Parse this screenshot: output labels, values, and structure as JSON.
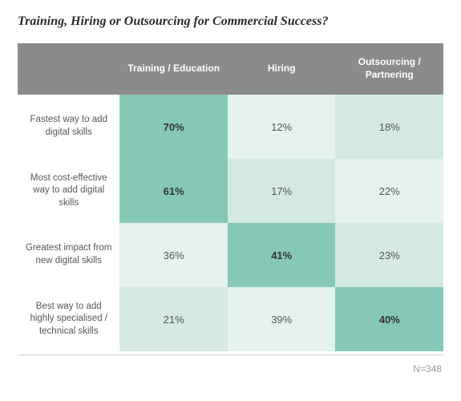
{
  "title": "Training, Hiring or Outsourcing for Commercial Success?",
  "type": "table-heatmap",
  "colors": {
    "header_bg": "#8a8c8b",
    "header_fg": "#ffffff",
    "highlight_bg": "#86c8b6",
    "plain_bg_a": "#e5f2ee",
    "plain_bg_b": "#d3e9e2",
    "background": "#ffffff",
    "text": "#555657",
    "text_strong": "#333333",
    "footnote": "#9a9b9c",
    "rule": "#cfcfcf"
  },
  "typography": {
    "title_font": "Georgia serif italic bold",
    "title_size_pt": 16,
    "header_size_pt": 12,
    "rowlabel_size_pt": 11.5,
    "cell_size_pt": 13,
    "footnote_size_pt": 12
  },
  "columns": [
    "Training / Education",
    "Hiring",
    "Outsourcing / Partnering"
  ],
  "rows": [
    {
      "label": "Fastest way to add digital skills",
      "cells": [
        {
          "value": "70%",
          "bg": "#86c8b6",
          "highlight": true
        },
        {
          "value": "12%",
          "bg": "#e5f2ee",
          "highlight": false
        },
        {
          "value": "18%",
          "bg": "#d3e9e2",
          "highlight": false
        }
      ]
    },
    {
      "label": "Most cost-effective way to add digital skills",
      "cells": [
        {
          "value": "61%",
          "bg": "#86c8b6",
          "highlight": true
        },
        {
          "value": "17%",
          "bg": "#d3e9e2",
          "highlight": false
        },
        {
          "value": "22%",
          "bg": "#e5f2ee",
          "highlight": false
        }
      ]
    },
    {
      "label": "Greatest impact from new digital skills",
      "cells": [
        {
          "value": "36%",
          "bg": "#e5f2ee",
          "highlight": false
        },
        {
          "value": "41%",
          "bg": "#86c8b6",
          "highlight": true
        },
        {
          "value": "23%",
          "bg": "#d3e9e2",
          "highlight": false
        }
      ]
    },
    {
      "label": "Best way to add highly specialised / technical skills",
      "cells": [
        {
          "value": "21%",
          "bg": "#d3e9e2",
          "highlight": false
        },
        {
          "value": "39%",
          "bg": "#e5f2ee",
          "highlight": false
        },
        {
          "value": "40%",
          "bg": "#86c8b6",
          "highlight": true
        }
      ]
    }
  ],
  "footnote": "N=348"
}
